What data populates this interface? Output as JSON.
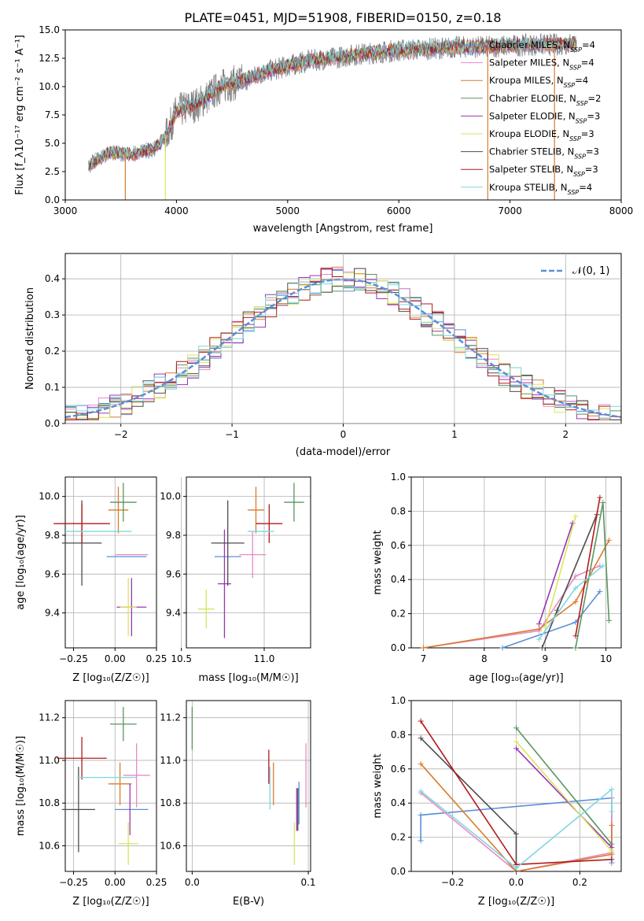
{
  "chart_data": [
    {
      "id": "spectrum",
      "type": "line",
      "title": "PLATE=0451, MJD=51908, FIBERID=0150, z=0.18",
      "xlabel": "wavelength [Angstrom, rest frame]",
      "ylabel": "Flux [f_λ10⁻¹⁷ erg cm⁻² s⁻¹ A⁻¹]",
      "xlim": [
        3000,
        8000
      ],
      "ylim": [
        0,
        15
      ],
      "xticks": [
        "3000",
        "4000",
        "5000",
        "6000",
        "7000",
        "8000"
      ],
      "yticks": [
        "0.0",
        "2.5",
        "5.0",
        "7.5",
        "10.0",
        "12.5",
        "15.0"
      ],
      "grid": false,
      "legend_position": "top-right",
      "legend": [
        "Chabrier MILES, N_SSP=4",
        "Salpeter MILES, N_SSP=4",
        "Kroupa MILES, N_SSP=4",
        "Chabrier ELODIE, N_SSP=2",
        "Salpeter ELODIE, N_SSP=3",
        "Kroupa ELODIE, N_SSP=3",
        "Chabrier STELIB, N_SSP=3",
        "Salpeter STELIB, N_SSP=3",
        "Kroupa STELIB, N_SSP=4"
      ],
      "data_points": {
        "x": [
          3200,
          3400,
          3600,
          3800,
          3900,
          4000,
          4200,
          4400,
          4600,
          4800,
          5000,
          5200,
          5400,
          5600,
          5800,
          6000,
          6200,
          6400,
          6600,
          6800,
          7000,
          7200,
          7400,
          7600
        ],
        "y": [
          3.0,
          4.2,
          4.0,
          4.5,
          5.5,
          7.8,
          8.5,
          10.0,
          10.5,
          11.3,
          11.8,
          12.3,
          12.5,
          12.8,
          13.0,
          13.2,
          13.3,
          13.4,
          13.5,
          13.5,
          13.6,
          13.7,
          13.7,
          13.8
        ]
      }
    },
    {
      "id": "residuals",
      "type": "step",
      "xlabel": "(data-model)/error",
      "ylabel": "Normed distribution",
      "xlim": [
        -2.5,
        2.5
      ],
      "ylim": [
        0,
        0.47
      ],
      "xticks": [
        "−2",
        "−1",
        "0",
        "1",
        "2"
      ],
      "yticks": [
        "0.0",
        "0.1",
        "0.2",
        "0.3",
        "0.4"
      ],
      "grid": true,
      "legend_position": "top-right",
      "legend": [
        "𝒩(0, 1)"
      ]
    },
    {
      "id": "age_vs_Z",
      "type": "errorbar",
      "xlabel": "Z [log₁₀(Z/Z☉)]",
      "ylabel": "age  [log₁₀(age/yr)]",
      "xlim": [
        -0.3,
        0.25
      ],
      "ylim": [
        9.22,
        10.1
      ],
      "xticks": [
        "−0.25",
        "0.00",
        "0.25"
      ],
      "yticks": [
        "9.4",
        "9.6",
        "9.8",
        "10.0"
      ],
      "grid": true
    },
    {
      "id": "age_vs_mass",
      "type": "errorbar",
      "xlabel": "mass [log₁₀(M/M☉)]",
      "xlim": [
        10.53,
        11.28
      ],
      "ylim": [
        9.22,
        10.1
      ],
      "xticks": [
        "10.5",
        "11.0"
      ],
      "yticks": [
        "9.4",
        "9.6",
        "9.8",
        "10.0"
      ],
      "grid": true
    },
    {
      "id": "massweight_vs_age",
      "type": "line",
      "xlabel": "age  [log₁₀(age/yr)]",
      "ylabel": "mass weight",
      "xlim": [
        6.8,
        10.25
      ],
      "ylim": [
        0,
        1
      ],
      "xticks": [
        "7",
        "8",
        "9",
        "10"
      ],
      "yticks": [
        "0.0",
        "0.2",
        "0.4",
        "0.6",
        "0.8",
        "1.0"
      ],
      "grid": true
    },
    {
      "id": "mass_vs_Z",
      "type": "errorbar",
      "xlabel": "Z [log₁₀(Z/Z☉)]",
      "ylabel": "mass [log₁₀(M/M☉)]",
      "xlim": [
        -0.3,
        0.25
      ],
      "ylim": [
        10.48,
        11.28
      ],
      "xticks": [
        "−0.25",
        "0.00",
        "0.25"
      ],
      "yticks": [
        "10.6",
        "10.8",
        "11.0",
        "11.2"
      ],
      "grid": true
    },
    {
      "id": "mass_vs_ebv",
      "type": "errorbar",
      "xlabel": "E(B-V)",
      "xlim": [
        -0.005,
        0.102
      ],
      "ylim": [
        10.48,
        11.28
      ],
      "xticks": [
        "0.0",
        "0.1"
      ],
      "yticks": [
        "10.6",
        "10.8",
        "11.0",
        "11.2"
      ],
      "grid": true
    },
    {
      "id": "massweight_vs_Z",
      "type": "line",
      "xlabel": "Z [log₁₀(Z/Z☉)]",
      "ylabel": "mass weight",
      "xlim": [
        -0.33,
        0.33
      ],
      "ylim": [
        0,
        1
      ],
      "xticks": [
        "−0.2",
        "0.0",
        "0.2"
      ],
      "yticks": [
        "0.0",
        "0.2",
        "0.4",
        "0.6",
        "0.8",
        "1.0"
      ],
      "grid": true
    }
  ],
  "colors": {
    "Chabrier MILES": "#5a8fd8",
    "Salpeter MILES": "#e78ac3",
    "Kroupa MILES": "#d97b2c",
    "Chabrier ELODIE": "#5b9460",
    "Salpeter ELODIE": "#9b34b5",
    "Kroupa ELODIE": "#d7e65a",
    "Chabrier STELIB": "#4d4d4d",
    "Salpeter STELIB": "#b01c1c",
    "Kroupa STELIB": "#7fd6e0",
    "data": "#808080",
    "normal": "#5a8fd8"
  }
}
